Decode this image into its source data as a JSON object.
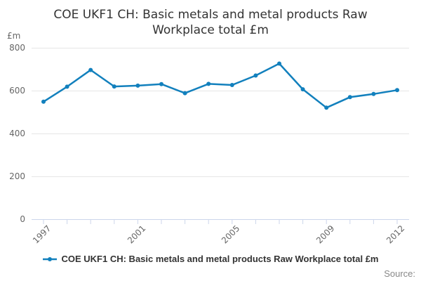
{
  "chart": {
    "title": "COE UKF1 CH: Basic metals and metal products Raw Workplace total £m",
    "y_unit": "£m"
  },
  "chart_data": {
    "type": "line",
    "title": "COE UKF1 CH: Basic metals and metal products Raw Workplace total £m",
    "x": [
      1997,
      1998,
      1999,
      2000,
      2001,
      2002,
      2003,
      2004,
      2005,
      2006,
      2007,
      2008,
      2009,
      2010,
      2011,
      2012
    ],
    "series": [
      {
        "name": "COE UKF1 CH: Basic metals and metal products Raw Workplace total £m",
        "values": [
          550,
          620,
          698,
          621,
          625,
          632,
          590,
          633,
          628,
          672,
          728,
          608,
          522,
          571,
          586,
          604
        ]
      }
    ],
    "xlabel": "",
    "ylabel": "£m",
    "ylim": [
      0,
      800
    ],
    "yticks": [
      0,
      200,
      400,
      600,
      800
    ],
    "xticks_labeled": [
      1997,
      2001,
      2005,
      2009,
      2012
    ],
    "grid": true,
    "legend_position": "bottom",
    "colors": {
      "line": "#1280bd",
      "grid": "#e6e6e6",
      "axis": "#ccd6eb",
      "tick_text": "#666666",
      "title_text": "#333333",
      "legend_text": "#333333",
      "source_text": "#888888"
    }
  },
  "legend": {
    "label": "COE UKF1 CH: Basic metals and metal products Raw Workplace total £m"
  },
  "footer": {
    "source_label": "Source:"
  }
}
